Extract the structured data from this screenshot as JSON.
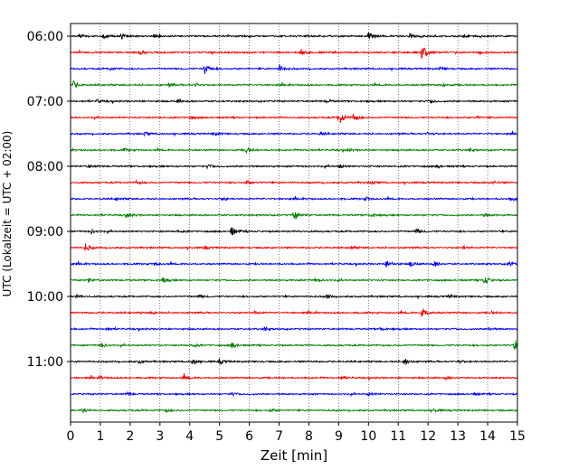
{
  "chart_data": {
    "type": "line",
    "title": "",
    "xlabel": "Zeit  [min]",
    "ylabel": "UTC (Lokalzeit = UTC + 02:00)",
    "xlim": [
      0,
      15
    ],
    "x_ticks": [
      "0",
      "1",
      "2",
      "3",
      "4",
      "5",
      "6",
      "7",
      "8",
      "9",
      "10",
      "11",
      "12",
      "13",
      "14",
      "15"
    ],
    "y_ticks": [
      {
        "label": "06:00",
        "row": 0
      },
      {
        "label": "07:00",
        "row": 4
      },
      {
        "label": "08:00",
        "row": 8
      },
      {
        "label": "09:00",
        "row": 12
      },
      {
        "label": "10:00",
        "row": 16
      },
      {
        "label": "11:00",
        "row": 20
      }
    ],
    "grid": "vertical-dotted",
    "row_minutes": 15,
    "colors": [
      "#000000",
      "#ff0000",
      "#0000ff",
      "#008000"
    ],
    "traces": [
      {
        "start": "06:00",
        "color": "#000000",
        "events": [
          [
            0.3,
            0.25
          ],
          [
            1.1,
            0.3
          ],
          [
            1.7,
            0.35
          ],
          [
            2.8,
            0.2
          ],
          [
            10.0,
            0.55
          ],
          [
            11.4,
            0.2
          ],
          [
            13.2,
            0.2
          ]
        ]
      },
      {
        "start": "06:15",
        "color": "#ff0000",
        "events": [
          [
            2.3,
            0.2
          ],
          [
            7.7,
            0.5
          ],
          [
            11.8,
            1.0
          ],
          [
            13.7,
            0.2
          ]
        ]
      },
      {
        "start": "06:30",
        "color": "#0000ff",
        "events": [
          [
            1.3,
            0.2
          ],
          [
            4.5,
            0.7
          ],
          [
            7.0,
            0.5
          ],
          [
            12.4,
            0.2
          ]
        ]
      },
      {
        "start": "06:45",
        "color": "#008000",
        "events": [
          [
            0.1,
            0.5
          ],
          [
            3.3,
            0.2
          ],
          [
            4.2,
            0.2
          ],
          [
            12.5,
            0.2
          ]
        ]
      },
      {
        "start": "07:00",
        "color": "#000000",
        "events": [
          [
            0.9,
            0.2
          ],
          [
            3.6,
            0.2
          ],
          [
            8.6,
            0.2
          ],
          [
            12.1,
            0.2
          ]
        ]
      },
      {
        "start": "07:15",
        "color": "#ff0000",
        "events": [
          [
            4.0,
            0.25
          ],
          [
            9.0,
            1.1
          ],
          [
            9.5,
            0.55
          ],
          [
            13.6,
            0.2
          ]
        ]
      },
      {
        "start": "07:30",
        "color": "#0000ff",
        "events": [
          [
            2.5,
            0.2
          ],
          [
            4.8,
            0.3
          ],
          [
            8.4,
            0.2
          ],
          [
            12.0,
            0.2
          ]
        ]
      },
      {
        "start": "07:45",
        "color": "#008000",
        "events": [
          [
            1.8,
            0.2
          ],
          [
            5.9,
            0.4
          ],
          [
            9.3,
            0.2
          ],
          [
            13.4,
            0.2
          ]
        ]
      },
      {
        "start": "08:00",
        "color": "#000000",
        "events": [
          [
            0.6,
            0.2
          ],
          [
            4.6,
            0.2
          ],
          [
            9.0,
            0.25
          ],
          [
            12.3,
            0.2
          ]
        ]
      },
      {
        "start": "08:15",
        "color": "#ff0000",
        "events": [
          [
            2.2,
            0.2
          ],
          [
            5.9,
            0.25
          ],
          [
            10.1,
            0.2
          ],
          [
            14.2,
            0.2
          ]
        ]
      },
      {
        "start": "08:30",
        "color": "#0000ff",
        "events": [
          [
            1.5,
            0.2
          ],
          [
            5.1,
            0.2
          ],
          [
            9.9,
            0.2
          ],
          [
            14.8,
            0.25
          ]
        ]
      },
      {
        "start": "08:45",
        "color": "#008000",
        "events": [
          [
            1.9,
            0.3
          ],
          [
            7.5,
            0.65
          ],
          [
            10.1,
            0.2
          ],
          [
            13.9,
            0.2
          ]
        ]
      },
      {
        "start": "09:00",
        "color": "#000000",
        "events": [
          [
            0.7,
            0.2
          ],
          [
            3.6,
            0.2
          ],
          [
            5.4,
            0.65
          ],
          [
            11.6,
            0.3
          ]
        ]
      },
      {
        "start": "09:15",
        "color": "#ff0000",
        "events": [
          [
            0.5,
            0.45
          ],
          [
            4.5,
            0.2
          ],
          [
            9.4,
            0.2
          ],
          [
            13.2,
            0.2
          ]
        ]
      },
      {
        "start": "09:30",
        "color": "#0000ff",
        "events": [
          [
            2.8,
            0.2
          ],
          [
            10.6,
            0.5
          ],
          [
            11.4,
            0.35
          ],
          [
            12.2,
            0.4
          ],
          [
            14.7,
            0.3
          ]
        ]
      },
      {
        "start": "09:45",
        "color": "#008000",
        "events": [
          [
            0.6,
            0.25
          ],
          [
            3.1,
            0.3
          ],
          [
            8.2,
            0.2
          ],
          [
            13.9,
            0.55
          ]
        ]
      },
      {
        "start": "10:00",
        "color": "#000000",
        "events": [
          [
            0.2,
            0.2
          ],
          [
            4.3,
            0.2
          ],
          [
            8.6,
            0.25
          ],
          [
            12.7,
            0.2
          ]
        ]
      },
      {
        "start": "10:15",
        "color": "#ff0000",
        "events": [
          [
            2.7,
            0.2
          ],
          [
            6.2,
            0.2
          ],
          [
            11.8,
            0.85
          ],
          [
            14.1,
            0.2
          ]
        ]
      },
      {
        "start": "10:30",
        "color": "#0000ff",
        "events": [
          [
            1.2,
            0.2
          ],
          [
            6.5,
            0.25
          ],
          [
            10.4,
            0.2
          ],
          [
            14.0,
            0.2
          ]
        ]
      },
      {
        "start": "10:45",
        "color": "#008000",
        "events": [
          [
            1.0,
            0.3
          ],
          [
            4.1,
            0.25
          ],
          [
            5.4,
            0.45
          ],
          [
            14.9,
            0.6
          ]
        ]
      },
      {
        "start": "11:00",
        "color": "#000000",
        "events": [
          [
            2.3,
            0.25
          ],
          [
            4.1,
            0.4
          ],
          [
            5.0,
            0.3
          ],
          [
            11.2,
            0.45
          ],
          [
            13.0,
            0.2
          ]
        ]
      },
      {
        "start": "11:15",
        "color": "#ff0000",
        "events": [
          [
            1.0,
            0.2
          ],
          [
            3.8,
            0.3
          ],
          [
            9.1,
            0.2
          ],
          [
            12.6,
            0.2
          ]
        ]
      },
      {
        "start": "11:30",
        "color": "#0000ff",
        "events": [
          [
            1.9,
            0.25
          ],
          [
            5.4,
            0.2
          ],
          [
            10.0,
            0.2
          ],
          [
            13.5,
            0.2
          ]
        ]
      },
      {
        "start": "11:45",
        "color": "#008000",
        "events": [
          [
            0.4,
            0.2
          ],
          [
            3.2,
            0.2
          ],
          [
            6.7,
            0.2
          ],
          [
            12.2,
            0.2
          ]
        ]
      }
    ]
  }
}
